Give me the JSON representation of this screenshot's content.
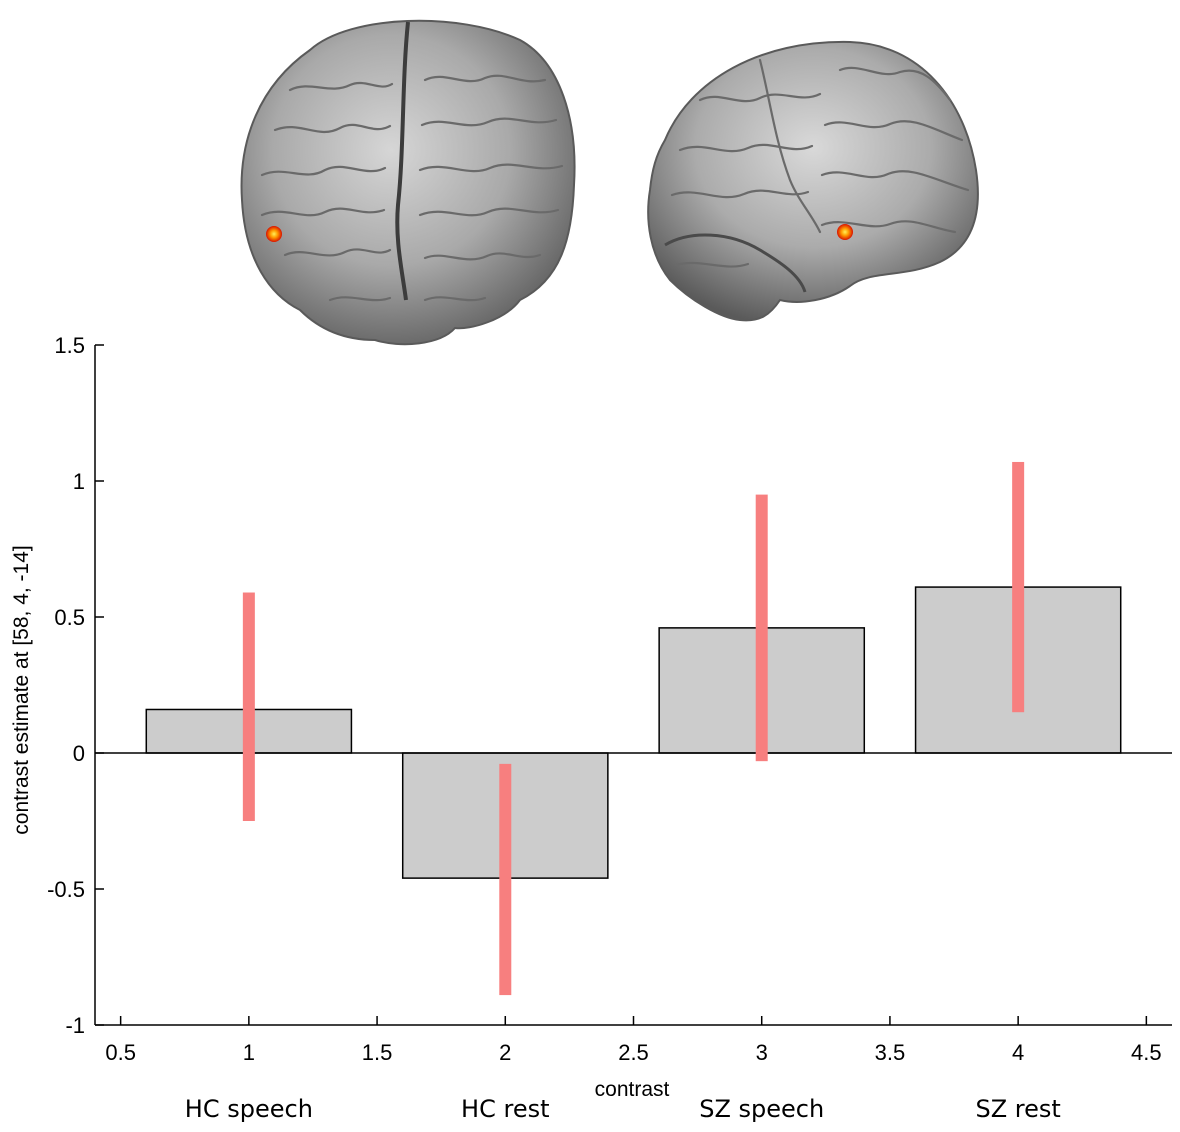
{
  "chart_data": {
    "type": "bar",
    "x": [
      1,
      2,
      3,
      4
    ],
    "values": [
      0.16,
      -0.46,
      0.46,
      0.61
    ],
    "error_low": [
      -0.25,
      -0.89,
      -0.03,
      0.15
    ],
    "error_high": [
      0.59,
      -0.04,
      0.95,
      1.07
    ],
    "bar_color": "#cccccc",
    "error_color": "#f77f7f",
    "xlim": [
      0.4,
      4.6
    ],
    "ylim": [
      -1,
      1.5
    ],
    "xticks": [
      "0.5",
      "1",
      "1.5",
      "2",
      "2.5",
      "3",
      "3.5",
      "4",
      "4.5"
    ],
    "yticks": [
      "-1",
      "-0.5",
      "0",
      "0.5",
      "1",
      "1.5"
    ],
    "xlabel": "contrast",
    "ylabel": "contrast estimate at [58, 4, -14]",
    "condition_labels": [
      "HC speech",
      "HC rest",
      "SZ speech",
      "SZ rest"
    ]
  },
  "brain_views": {
    "views": [
      "coronal",
      "sagittal"
    ],
    "highlight_colors": [
      "#ff2a00",
      "#ffd400"
    ]
  }
}
